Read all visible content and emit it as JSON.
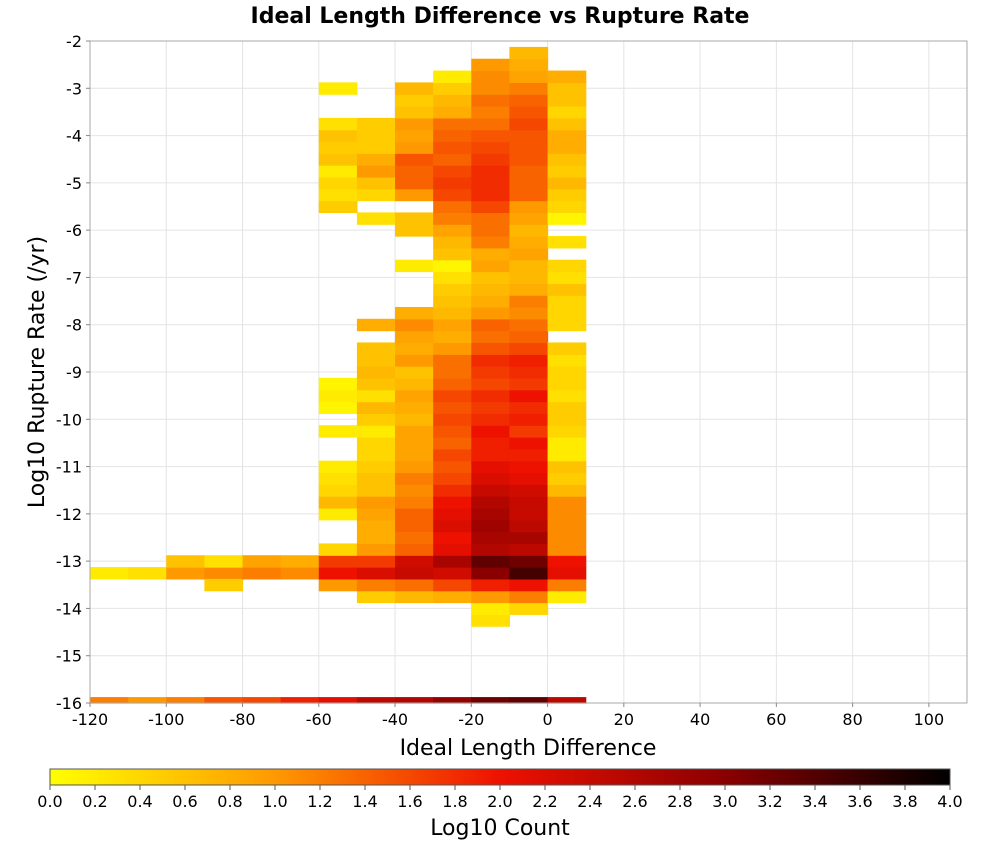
{
  "chart_data": {
    "type": "heatmap",
    "title": "Ideal Length Difference vs Rupture Rate",
    "xlabel": "Ideal Length Difference",
    "ylabel": "Log10 Rupture Rate (/yr)",
    "xlim": [
      -120,
      110
    ],
    "ylim": [
      -16,
      -2
    ],
    "xticks": [
      -120,
      -100,
      -80,
      -60,
      -40,
      -20,
      0,
      20,
      40,
      60,
      80,
      100
    ],
    "yticks": [
      -2,
      -3,
      -4,
      -5,
      -6,
      -7,
      -8,
      -9,
      -10,
      -11,
      -12,
      -13,
      -14,
      -15,
      -16
    ],
    "grid": true,
    "x_bin_width": 10,
    "y_bin_height": 0.25,
    "colorbar": {
      "label": "Log10 Count",
      "range": [
        0,
        4
      ],
      "ticks": [
        "0.0",
        "0.2",
        "0.4",
        "0.6",
        "0.8",
        "1.0",
        "1.2",
        "1.4",
        "1.6",
        "1.8",
        "2.0",
        "2.2",
        "2.4",
        "2.6",
        "2.8",
        "3.0",
        "3.2",
        "3.4",
        "3.6",
        "3.8",
        "4.0"
      ],
      "colormap": [
        "#ffff00",
        "#ff9900",
        "#ee1100",
        "#8a0000",
        "#000000"
      ]
    },
    "columns": [
      {
        "x": -115,
        "rows": [
          [
            -16,
            1.2
          ],
          [
            -13.25,
            0.2
          ]
        ]
      },
      {
        "x": -105,
        "rows": [
          [
            -16,
            1.0
          ],
          [
            -13.25,
            0.3
          ]
        ]
      },
      {
        "x": -95,
        "rows": [
          [
            -16,
            1.2
          ],
          [
            -13.25,
            1.0
          ],
          [
            -13,
            0.6
          ]
        ]
      },
      {
        "x": -85,
        "rows": [
          [
            -16,
            1.5
          ],
          [
            -13.25,
            1.1
          ],
          [
            -13,
            0.3
          ],
          [
            -13.5,
            0.5
          ]
        ]
      },
      {
        "x": -75,
        "rows": [
          [
            -16,
            1.6
          ],
          [
            -13.25,
            1.2
          ],
          [
            -13,
            0.9
          ]
        ]
      },
      {
        "x": -65,
        "rows": [
          [
            -16,
            1.9
          ],
          [
            -13.25,
            1.1
          ],
          [
            -13,
            0.8
          ]
        ]
      },
      {
        "x": -55,
        "rows": [
          [
            -16,
            2.1
          ],
          [
            -13.5,
            1.0
          ],
          [
            -13.25,
            2.0
          ],
          [
            -13,
            1.7
          ],
          [
            -12.75,
            0.4
          ],
          [
            -12,
            0.2
          ],
          [
            -11.75,
            0.7
          ],
          [
            -11.5,
            0.4
          ],
          [
            -11.25,
            0.3
          ],
          [
            -11,
            0.2
          ],
          [
            -10.25,
            0.2
          ],
          [
            -9.75,
            0.1
          ],
          [
            -9.5,
            0.2
          ],
          [
            -9.25,
            0.1
          ],
          [
            -5.5,
            0.5
          ],
          [
            -5.25,
            0.3
          ],
          [
            -5,
            0.4
          ],
          [
            -4.75,
            0.2
          ],
          [
            -4.5,
            0.6
          ],
          [
            -4.25,
            0.5
          ],
          [
            -4,
            0.6
          ],
          [
            -3.75,
            0.3
          ],
          [
            -3,
            0.2
          ]
        ]
      },
      {
        "x": -45,
        "rows": [
          [
            -16,
            2.5
          ],
          [
            -13.75,
            0.5
          ],
          [
            -13.5,
            1.2
          ],
          [
            -13.25,
            2.2
          ],
          [
            -13,
            1.7
          ],
          [
            -12.75,
            1.0
          ],
          [
            -12.5,
            0.8
          ],
          [
            -12.25,
            0.8
          ],
          [
            -12,
            0.9
          ],
          [
            -11.75,
            1.0
          ],
          [
            -11.5,
            0.6
          ],
          [
            -11.25,
            0.6
          ],
          [
            -11,
            0.5
          ],
          [
            -10.75,
            0.4
          ],
          [
            -10.5,
            0.4
          ],
          [
            -10.25,
            0.2
          ],
          [
            -10,
            0.5
          ],
          [
            -9.75,
            0.7
          ],
          [
            -9.5,
            0.3
          ],
          [
            -9.25,
            0.6
          ],
          [
            -9,
            0.7
          ],
          [
            -8.75,
            0.6
          ],
          [
            -8.5,
            0.6
          ],
          [
            -8,
            0.8
          ],
          [
            -5.75,
            0.3
          ],
          [
            -5.25,
            0.4
          ],
          [
            -5,
            0.6
          ],
          [
            -4.75,
            1.0
          ],
          [
            -4.5,
            0.8
          ],
          [
            -4.25,
            0.5
          ],
          [
            -4,
            0.5
          ],
          [
            -3.75,
            0.5
          ]
        ]
      },
      {
        "x": -35,
        "rows": [
          [
            -16,
            2.6
          ],
          [
            -13.75,
            0.7
          ],
          [
            -13.5,
            1.3
          ],
          [
            -13.25,
            2.4
          ],
          [
            -13,
            2.3
          ],
          [
            -12.75,
            1.4
          ],
          [
            -12.5,
            1.3
          ],
          [
            -12.25,
            1.4
          ],
          [
            -12,
            1.4
          ],
          [
            -11.75,
            1.2
          ],
          [
            -11.5,
            1.1
          ],
          [
            -11.25,
            1.2
          ],
          [
            -11,
            1.0
          ],
          [
            -10.75,
            0.9
          ],
          [
            -10.5,
            0.9
          ],
          [
            -10.25,
            0.9
          ],
          [
            -10,
            0.7
          ],
          [
            -9.75,
            0.8
          ],
          [
            -9.5,
            0.9
          ],
          [
            -9.25,
            0.7
          ],
          [
            -9,
            0.6
          ],
          [
            -8.75,
            1.0
          ],
          [
            -8.5,
            0.8
          ],
          [
            -8.25,
            0.9
          ],
          [
            -8,
            1.1
          ],
          [
            -7.75,
            0.8
          ],
          [
            -6.75,
            0.2
          ],
          [
            -6,
            0.6
          ],
          [
            -5.75,
            0.6
          ],
          [
            -5.25,
            1.0
          ],
          [
            -5,
            1.4
          ],
          [
            -4.75,
            1.4
          ],
          [
            -4.5,
            1.5
          ],
          [
            -4.25,
            1.0
          ],
          [
            -4,
            0.9
          ],
          [
            -3.75,
            1.0
          ],
          [
            -3.5,
            0.6
          ],
          [
            -3.25,
            0.5
          ],
          [
            -3,
            0.7
          ]
        ]
      },
      {
        "x": -25,
        "rows": [
          [
            -16,
            2.9
          ],
          [
            -13.75,
            0.8
          ],
          [
            -13.5,
            1.6
          ],
          [
            -13.25,
            2.3
          ],
          [
            -13,
            2.7
          ],
          [
            -12.75,
            2.1
          ],
          [
            -12.5,
            2.0
          ],
          [
            -12.25,
            2.2
          ],
          [
            -12,
            2.1
          ],
          [
            -11.75,
            2.0
          ],
          [
            -11.5,
            1.8
          ],
          [
            -11.25,
            1.6
          ],
          [
            -11,
            1.5
          ],
          [
            -10.75,
            1.6
          ],
          [
            -10.5,
            1.4
          ],
          [
            -10.25,
            1.5
          ],
          [
            -10,
            1.6
          ],
          [
            -9.75,
            1.5
          ],
          [
            -9.5,
            1.6
          ],
          [
            -9.25,
            1.4
          ],
          [
            -9,
            1.3
          ],
          [
            -8.75,
            1.3
          ],
          [
            -8.5,
            1.0
          ],
          [
            -8.25,
            0.8
          ],
          [
            -8,
            0.9
          ],
          [
            -7.75,
            0.7
          ],
          [
            -7.5,
            0.6
          ],
          [
            -7.25,
            0.5
          ],
          [
            -7,
            0.3
          ],
          [
            -6.75,
            0.1
          ],
          [
            -6.5,
            0.6
          ],
          [
            -6.25,
            0.7
          ],
          [
            -6,
            0.9
          ],
          [
            -5.75,
            1.2
          ],
          [
            -5.5,
            1.3
          ],
          [
            -5.25,
            1.6
          ],
          [
            -5,
            1.7
          ],
          [
            -4.75,
            1.6
          ],
          [
            -4.5,
            1.4
          ],
          [
            -4.25,
            1.5
          ],
          [
            -4,
            1.4
          ],
          [
            -3.75,
            1.3
          ],
          [
            -3.5,
            0.8
          ],
          [
            -3.25,
            0.7
          ],
          [
            -3,
            0.5
          ],
          [
            -2.75,
            0.2
          ]
        ]
      },
      {
        "x": -15,
        "rows": [
          [
            -16,
            3.2
          ],
          [
            -14.25,
            0.3
          ],
          [
            -14,
            0.2
          ],
          [
            -13.75,
            1.0
          ],
          [
            -13.5,
            1.9
          ],
          [
            -13.25,
            3.0
          ],
          [
            -13,
            3.3
          ],
          [
            -12.75,
            2.6
          ],
          [
            -12.5,
            2.7
          ],
          [
            -12.25,
            2.8
          ],
          [
            -12,
            2.7
          ],
          [
            -11.75,
            2.6
          ],
          [
            -11.5,
            2.4
          ],
          [
            -11.25,
            2.2
          ],
          [
            -11,
            2.1
          ],
          [
            -10.75,
            1.9
          ],
          [
            -10.5,
            1.9
          ],
          [
            -10.25,
            2.0
          ],
          [
            -10,
            1.8
          ],
          [
            -9.75,
            1.7
          ],
          [
            -9.5,
            1.8
          ],
          [
            -9.25,
            1.6
          ],
          [
            -9,
            1.7
          ],
          [
            -8.75,
            1.8
          ],
          [
            -8.5,
            1.5
          ],
          [
            -8.25,
            1.3
          ],
          [
            -8,
            1.4
          ],
          [
            -7.75,
            1.0
          ],
          [
            -7.5,
            0.8
          ],
          [
            -7.25,
            0.7
          ],
          [
            -7,
            0.6
          ],
          [
            -6.75,
            0.9
          ],
          [
            -6.5,
            0.8
          ],
          [
            -6.25,
            1.2
          ],
          [
            -6,
            1.3
          ],
          [
            -5.75,
            1.3
          ],
          [
            -5.5,
            1.6
          ],
          [
            -5.25,
            1.8
          ],
          [
            -5,
            1.8
          ],
          [
            -4.75,
            1.8
          ],
          [
            -4.5,
            1.7
          ],
          [
            -4.25,
            1.6
          ],
          [
            -4,
            1.5
          ],
          [
            -3.75,
            1.3
          ],
          [
            -3.5,
            1.2
          ],
          [
            -3.25,
            1.3
          ],
          [
            -3,
            1.1
          ],
          [
            -2.75,
            1.1
          ],
          [
            -2.5,
            1.0
          ]
        ]
      },
      {
        "x": -5,
        "rows": [
          [
            -16,
            3.3
          ],
          [
            -14,
            0.4
          ],
          [
            -13.75,
            1.2
          ],
          [
            -13.5,
            2.0
          ],
          [
            -13.25,
            3.5
          ],
          [
            -13,
            3.2
          ],
          [
            -12.75,
            2.5
          ],
          [
            -12.5,
            2.7
          ],
          [
            -12.25,
            2.5
          ],
          [
            -12,
            2.4
          ],
          [
            -11.75,
            2.4
          ],
          [
            -11.5,
            2.3
          ],
          [
            -11.25,
            2.1
          ],
          [
            -11,
            2.0
          ],
          [
            -10.75,
            1.9
          ],
          [
            -10.5,
            2.0
          ],
          [
            -10.25,
            1.7
          ],
          [
            -10,
            1.9
          ],
          [
            -9.75,
            1.8
          ],
          [
            -9.5,
            2.0
          ],
          [
            -9.25,
            1.7
          ],
          [
            -9,
            1.8
          ],
          [
            -8.75,
            1.9
          ],
          [
            -8.5,
            1.6
          ],
          [
            -8.25,
            1.4
          ],
          [
            -8,
            1.3
          ],
          [
            -7.75,
            1.1
          ],
          [
            -7.5,
            1.2
          ],
          [
            -7.25,
            0.8
          ],
          [
            -7,
            0.7
          ],
          [
            -6.75,
            0.7
          ],
          [
            -6.5,
            0.9
          ],
          [
            -6.25,
            0.8
          ],
          [
            -6,
            0.7
          ],
          [
            -5.75,
            0.9
          ],
          [
            -5.5,
            1.0
          ],
          [
            -5.25,
            1.4
          ],
          [
            -5,
            1.4
          ],
          [
            -4.75,
            1.4
          ],
          [
            -4.5,
            1.5
          ],
          [
            -4.25,
            1.5
          ],
          [
            -4,
            1.5
          ],
          [
            -3.75,
            1.6
          ],
          [
            -3.5,
            1.5
          ],
          [
            -3.25,
            1.4
          ],
          [
            -3,
            1.2
          ],
          [
            -2.75,
            0.9
          ],
          [
            -2.5,
            0.8
          ],
          [
            -2.25,
            0.7
          ]
        ]
      },
      {
        "x": 5,
        "rows": [
          [
            -16,
            2.5
          ],
          [
            -13.75,
            0.2
          ],
          [
            -13.5,
            1.2
          ],
          [
            -13.25,
            2.1
          ],
          [
            -13,
            2.0
          ],
          [
            -12.75,
            1.1
          ],
          [
            -12.5,
            1.1
          ],
          [
            -12.25,
            1.1
          ],
          [
            -12,
            1.1
          ],
          [
            -11.75,
            1.1
          ],
          [
            -11.5,
            0.7
          ],
          [
            -11.25,
            0.5
          ],
          [
            -11,
            0.6
          ],
          [
            -10.75,
            0.2
          ],
          [
            -10.5,
            0.2
          ],
          [
            -10.25,
            0.4
          ],
          [
            -10,
            0.5
          ],
          [
            -9.75,
            0.5
          ],
          [
            -9.5,
            0.3
          ],
          [
            -9.25,
            0.4
          ],
          [
            -9,
            0.4
          ],
          [
            -8.75,
            0.3
          ],
          [
            -8.5,
            0.5
          ],
          [
            -8,
            0.4
          ],
          [
            -7.75,
            0.4
          ],
          [
            -7.5,
            0.4
          ],
          [
            -7.25,
            0.6
          ],
          [
            -7,
            0.3
          ],
          [
            -6.75,
            0.4
          ],
          [
            -6.25,
            0.3
          ],
          [
            -5.75,
            0.1
          ],
          [
            -5.5,
            0.4
          ],
          [
            -5.25,
            0.5
          ],
          [
            -5,
            0.7
          ],
          [
            -4.75,
            0.5
          ],
          [
            -4.5,
            0.6
          ],
          [
            -4.25,
            0.8
          ],
          [
            -4,
            0.8
          ],
          [
            -3.75,
            0.6
          ],
          [
            -3.5,
            0.4
          ],
          [
            -3.25,
            0.6
          ],
          [
            -3,
            0.6
          ],
          [
            -2.75,
            0.8
          ]
        ]
      }
    ]
  }
}
